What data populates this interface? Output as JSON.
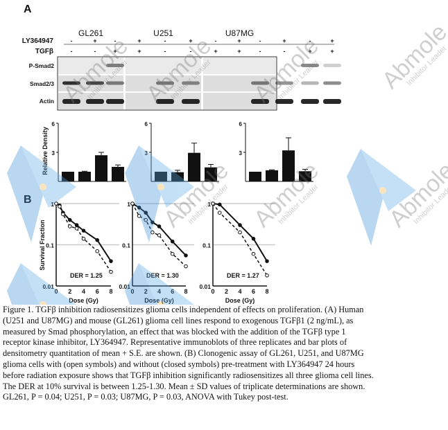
{
  "panel_labels": [
    "A",
    "B"
  ],
  "western": {
    "cell_lines": [
      "GL261",
      "U251",
      "U87MG"
    ],
    "treatments": [
      {
        "label": "LY364947",
        "signs": [
          "-",
          "+",
          "-",
          "+"
        ]
      },
      {
        "label": "TGFβ",
        "signs": [
          "-",
          "-",
          "+",
          "+"
        ]
      }
    ],
    "rows": [
      "P-Smad2",
      "Smad2/3",
      "Actin"
    ]
  },
  "watermark": {
    "brand": "Abmole",
    "tagline": "Inhibitor Leader"
  },
  "chart_data": [
    {
      "type": "bar",
      "panel": "A",
      "title": "GL261",
      "ylabel": "Relative Density",
      "ylim": [
        0,
        6
      ],
      "yticks": [
        3,
        6
      ],
      "categories": [
        "-/-",
        "+/-",
        "-/+",
        "+/+"
      ],
      "values": [
        1,
        1,
        2.7,
        1.5
      ],
      "errors": [
        0,
        0.05,
        0.3,
        0.2
      ]
    },
    {
      "type": "bar",
      "panel": "A",
      "title": "U251",
      "ylabel": "",
      "ylim": [
        0,
        6
      ],
      "yticks": [
        3,
        6
      ],
      "categories": [
        "-/-",
        "+/-",
        "-/+",
        "+/+"
      ],
      "values": [
        1,
        0.95,
        2.95,
        1.45
      ],
      "errors": [
        0,
        0.2,
        1.0,
        0.3
      ]
    },
    {
      "type": "bar",
      "panel": "A",
      "title": "U87MG",
      "ylabel": "",
      "ylim": [
        0,
        6
      ],
      "yticks": [
        3,
        6
      ],
      "categories": [
        "-/-",
        "+/-",
        "-/+",
        "+/+"
      ],
      "values": [
        1,
        1.15,
        3.2,
        1.05
      ],
      "errors": [
        0,
        0.05,
        1.3,
        0.2
      ]
    },
    {
      "type": "line",
      "panel": "B",
      "title": "GL261",
      "xlabel": "Dose (Gy)",
      "ylabel": "Survival Fraction",
      "yscale": "log",
      "ylim": [
        0.01,
        1
      ],
      "xlim": [
        0,
        8
      ],
      "xticks": [
        0,
        2,
        4,
        6,
        8
      ],
      "yticks": [
        "0.01",
        "0.1",
        "1"
      ],
      "annotation": "DER = 1.25",
      "series": [
        {
          "name": "without LY364947 (closed)",
          "x": [
            0,
            0.5,
            1,
            2,
            3,
            4,
            6,
            8
          ],
          "y": [
            1,
            0.9,
            0.6,
            0.4,
            0.3,
            0.22,
            0.13,
            0.04
          ]
        },
        {
          "name": "with LY364947 (open)",
          "x": [
            0,
            0.5,
            1,
            2,
            3,
            4,
            6,
            8
          ],
          "y": [
            1,
            0.85,
            0.55,
            0.28,
            0.25,
            0.14,
            0.07,
            0.022
          ]
        }
      ]
    },
    {
      "type": "line",
      "panel": "B",
      "title": "U251",
      "xlabel": "Dose (Gy)",
      "ylabel": "",
      "yscale": "log",
      "ylim": [
        0.01,
        1
      ],
      "xlim": [
        0,
        8
      ],
      "xticks": [
        0,
        2,
        4,
        6,
        8
      ],
      "yticks": [
        "0.01",
        "0.1",
        "1"
      ],
      "annotation": "DER = 1.30",
      "series": [
        {
          "name": "without LY364947 (closed)",
          "x": [
            0,
            1,
            2,
            3,
            4,
            6,
            8
          ],
          "y": [
            1,
            0.8,
            0.6,
            0.35,
            0.28,
            0.12,
            0.055
          ]
        },
        {
          "name": "with LY364947 (open)",
          "x": [
            0,
            1,
            2,
            3,
            4,
            6,
            8
          ],
          "y": [
            1,
            0.5,
            0.4,
            0.2,
            0.17,
            0.06,
            0.03
          ]
        }
      ]
    },
    {
      "type": "line",
      "panel": "B",
      "title": "U87MG",
      "xlabel": "Dose (Gy)",
      "ylabel": "",
      "yscale": "log",
      "ylim": [
        0.01,
        1
      ],
      "xlim": [
        0,
        8
      ],
      "xticks": [
        0,
        2,
        4,
        6,
        8
      ],
      "yticks": [
        "0.01",
        "0.1",
        "1"
      ],
      "annotation": "DER = 1.27",
      "series": [
        {
          "name": "without LY364947 (closed)",
          "x": [
            0,
            1,
            4,
            6,
            8
          ],
          "y": [
            1,
            0.95,
            0.3,
            0.14,
            0.04
          ]
        },
        {
          "name": "with LY364947 (open)",
          "x": [
            0,
            1,
            4,
            6,
            8
          ],
          "y": [
            1,
            0.6,
            0.2,
            0.06,
            0.018
          ]
        }
      ]
    }
  ],
  "caption": [
    "Figure 1. TGFβ inhibition radiosensitizes glioma cells independent of effects on proliferation. (A) Human",
    "(U251 and U87MG) and mouse (GL261) glioma cell lines respond to exogenous TGFβ1 (2 ng/mL), as",
    "measured by Smad phosphorylation, an effect that was blocked with the addition of the TGFβ type 1",
    "receptor kinase inhibitor, LY364947. Representative immunoblots of three replicates and bar plots of",
    "densitometry quantitation of mean + S.E. are shown. (B) Clonogenic assay of GL261, U251, and U87MG",
    "glioma cells with (open symbols) and without (closed symbols) pre-treatment with LY364947 24 hours",
    "before radiation exposure shows that TGFβ inhibition significantly radiosensitizes all three glioma cell lines.",
    "The DER at 10% survival is between 1.25-1.30. Mean ± SD values of triplicate determinations are shown.",
    "GL261, P = 0.04; U251, P = 0.03; U87MG, P = 0.03,  ANOVA with Tukey post-test."
  ]
}
